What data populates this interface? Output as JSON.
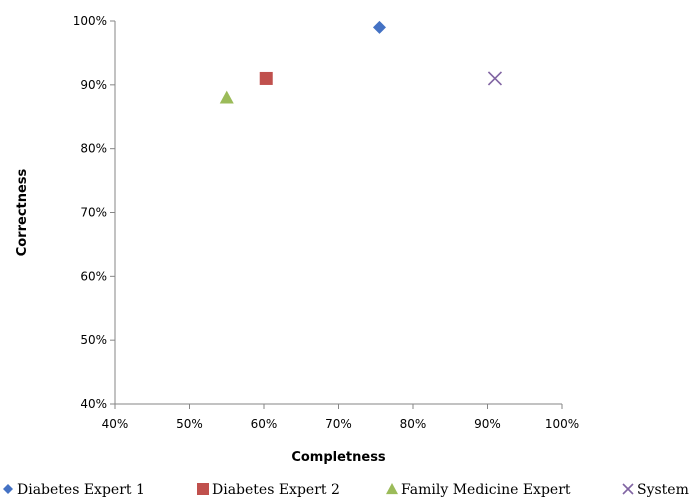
{
  "chart_data": {
    "type": "scatter",
    "xlabel": "Completness",
    "ylabel": "Correctness",
    "xlim": [
      0.4,
      1.0
    ],
    "ylim": [
      0.4,
      1.0
    ],
    "xticks": [
      "40%",
      "50%",
      "60%",
      "70%",
      "80%",
      "90%",
      "100%"
    ],
    "yticks": [
      "40%",
      "50%",
      "60%",
      "70%",
      "80%",
      "90%",
      "100%"
    ],
    "grid": false,
    "legend_position": "bottom",
    "series": [
      {
        "name": "Diabetes Expert 1",
        "x": 0.755,
        "y": 0.99,
        "marker": "diamond",
        "color": "#4472C4"
      },
      {
        "name": "Diabetes Expert 2",
        "x": 0.603,
        "y": 0.91,
        "marker": "square",
        "color": "#C0504D"
      },
      {
        "name": "Family Medicine Expert",
        "x": 0.55,
        "y": 0.88,
        "marker": "triangle",
        "color": "#9BBB59"
      },
      {
        "name": "System",
        "x": 0.91,
        "y": 0.91,
        "marker": "x",
        "color": "#8064A2"
      }
    ]
  }
}
